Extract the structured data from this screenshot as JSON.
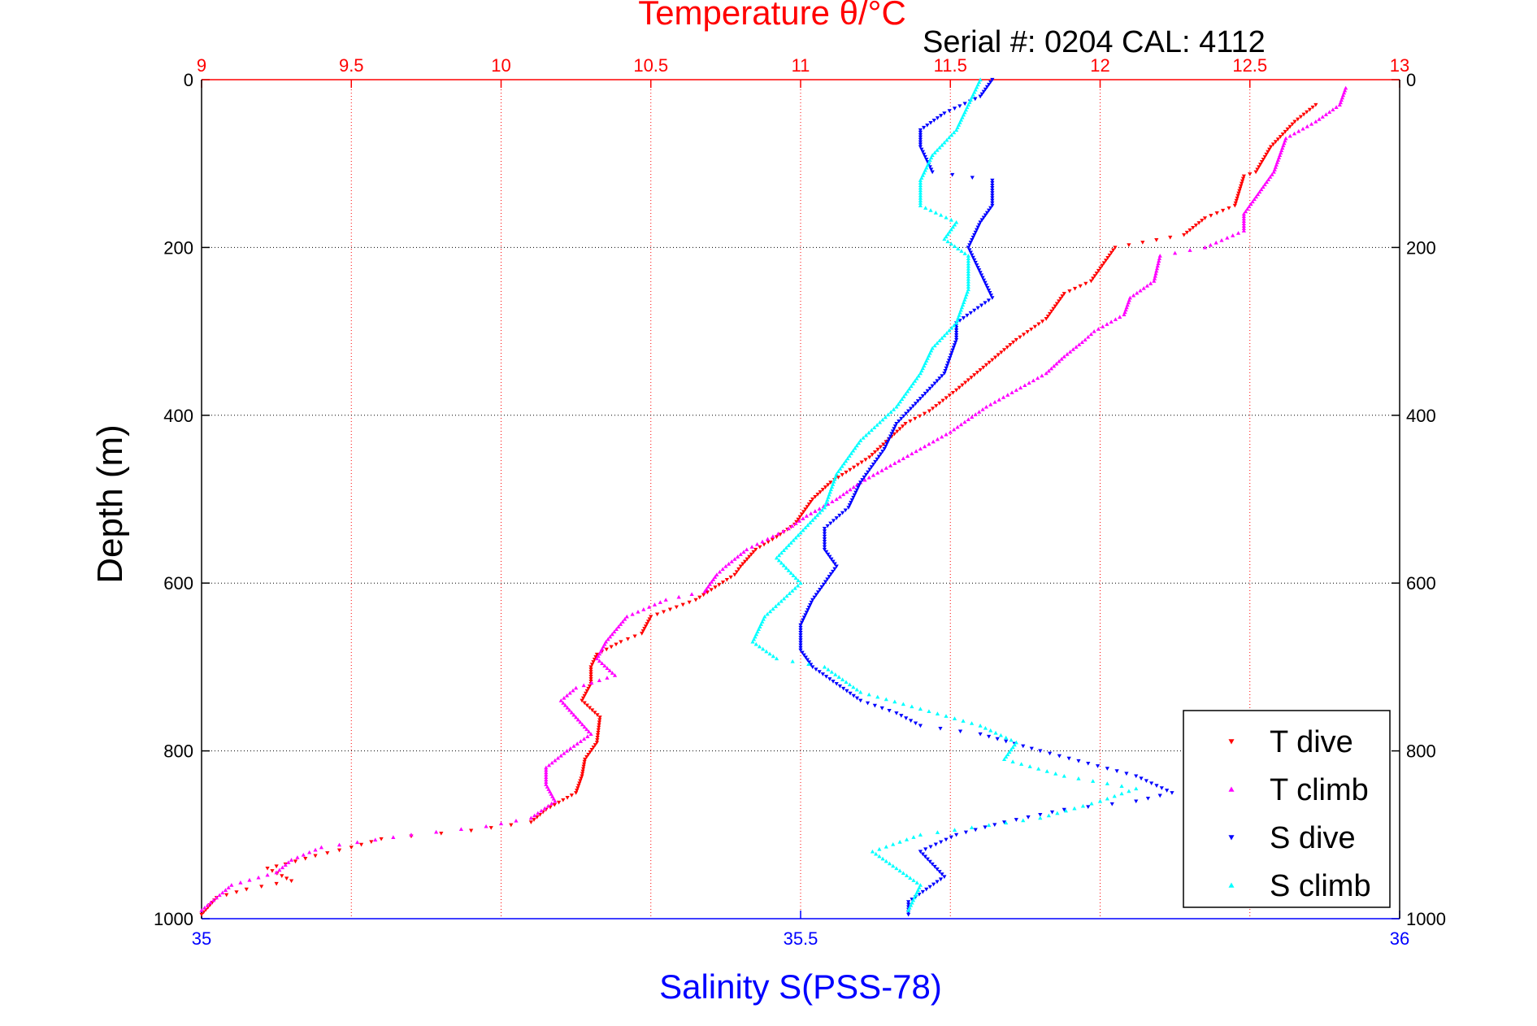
{
  "chart_data": {
    "type": "scatter",
    "title": "Temperature θ/°C",
    "subtitle": "Serial #: 0204  CAL: 4112",
    "xlabel_top": "Temperature θ/°C",
    "xlabel_bottom": "Salinity S(PSS-78)",
    "ylabel": "Depth (m)",
    "temp_axis": {
      "range": [
        9,
        13
      ],
      "ticks": [
        "9",
        "9.5",
        "10",
        "10.5",
        "11",
        "11.5",
        "12",
        "12.5",
        "13"
      ],
      "color": "#ff0000"
    },
    "sal_axis": {
      "range": [
        35,
        36
      ],
      "ticks": [
        "35",
        "35.5",
        "36"
      ],
      "color": "#0000ff"
    },
    "depth_axis": {
      "range": [
        0,
        1000
      ],
      "reversed": true,
      "ticks": [
        "0",
        "200",
        "400",
        "600",
        "800",
        "1000"
      ]
    },
    "grid": true,
    "legend_position": "bottom-right",
    "series": [
      {
        "name": "T dive",
        "axis": "temp",
        "color": "#ff0000",
        "marker": "triangle-down",
        "points": [
          [
            12.72,
            30
          ],
          [
            12.65,
            50
          ],
          [
            12.57,
            80
          ],
          [
            12.52,
            110
          ],
          [
            12.48,
            115
          ],
          [
            12.45,
            150
          ],
          [
            12.35,
            165
          ],
          [
            12.28,
            185
          ],
          [
            12.05,
            200
          ],
          [
            11.97,
            240
          ],
          [
            11.88,
            255
          ],
          [
            11.82,
            285
          ],
          [
            11.72,
            310
          ],
          [
            11.62,
            340
          ],
          [
            11.52,
            370
          ],
          [
            11.43,
            395
          ],
          [
            11.35,
            410
          ],
          [
            11.23,
            450
          ],
          [
            11.1,
            480
          ],
          [
            11.04,
            500
          ],
          [
            10.98,
            530
          ],
          [
            10.92,
            545
          ],
          [
            10.85,
            560
          ],
          [
            10.8,
            580
          ],
          [
            10.78,
            590
          ],
          [
            10.65,
            620
          ],
          [
            10.5,
            640
          ],
          [
            10.47,
            660
          ],
          [
            10.4,
            670
          ],
          [
            10.32,
            685
          ],
          [
            10.3,
            700
          ],
          [
            10.3,
            720
          ],
          [
            10.27,
            740
          ],
          [
            10.33,
            760
          ],
          [
            10.32,
            790
          ],
          [
            10.28,
            810
          ],
          [
            10.27,
            830
          ],
          [
            10.25,
            850
          ],
          [
            10.15,
            870
          ],
          [
            10.1,
            885
          ],
          [
            9.9,
            895
          ],
          [
            9.6,
            905
          ],
          [
            9.5,
            915
          ],
          [
            9.38,
            925
          ],
          [
            9.28,
            935
          ],
          [
            9.22,
            940
          ],
          [
            9.3,
            955
          ],
          [
            9.15,
            965
          ],
          [
            9.05,
            975
          ],
          [
            9.0,
            995
          ]
        ]
      },
      {
        "name": "T climb",
        "axis": "temp",
        "color": "#ff00ff",
        "marker": "triangle-up",
        "points": [
          [
            12.82,
            10
          ],
          [
            12.8,
            30
          ],
          [
            12.72,
            50
          ],
          [
            12.62,
            70
          ],
          [
            12.6,
            90
          ],
          [
            12.58,
            110
          ],
          [
            12.55,
            125
          ],
          [
            12.48,
            160
          ],
          [
            12.48,
            180
          ],
          [
            12.35,
            200
          ],
          [
            12.2,
            210
          ],
          [
            12.18,
            240
          ],
          [
            12.1,
            260
          ],
          [
            12.08,
            280
          ],
          [
            11.98,
            300
          ],
          [
            11.95,
            310
          ],
          [
            11.88,
            330
          ],
          [
            11.82,
            350
          ],
          [
            11.72,
            370
          ],
          [
            11.62,
            390
          ],
          [
            11.5,
            420
          ],
          [
            11.4,
            440
          ],
          [
            11.3,
            460
          ],
          [
            11.2,
            480
          ],
          [
            11.12,
            500
          ],
          [
            11.02,
            520
          ],
          [
            10.96,
            535
          ],
          [
            10.82,
            560
          ],
          [
            10.75,
            580
          ],
          [
            10.72,
            590
          ],
          [
            10.68,
            610
          ],
          [
            10.55,
            620
          ],
          [
            10.42,
            640
          ],
          [
            10.35,
            670
          ],
          [
            10.32,
            690
          ],
          [
            10.38,
            710
          ],
          [
            10.25,
            725
          ],
          [
            10.2,
            740
          ],
          [
            10.25,
            760
          ],
          [
            10.3,
            780
          ],
          [
            10.22,
            800
          ],
          [
            10.15,
            820
          ],
          [
            10.15,
            840
          ],
          [
            10.18,
            860
          ],
          [
            10.1,
            880
          ],
          [
            9.95,
            890
          ],
          [
            9.7,
            900
          ],
          [
            9.4,
            915
          ],
          [
            9.3,
            930
          ],
          [
            9.25,
            945
          ],
          [
            9.1,
            960
          ],
          [
            9.0,
            990
          ]
        ]
      },
      {
        "name": "S dive",
        "axis": "sal",
        "color": "#0000ff",
        "marker": "triangle-down",
        "points": [
          [
            35.66,
            0
          ],
          [
            35.65,
            20
          ],
          [
            35.62,
            40
          ],
          [
            35.6,
            60
          ],
          [
            35.6,
            80
          ],
          [
            35.61,
            110
          ],
          [
            35.66,
            120
          ],
          [
            35.66,
            150
          ],
          [
            35.65,
            170
          ],
          [
            35.64,
            200
          ],
          [
            35.65,
            230
          ],
          [
            35.66,
            260
          ],
          [
            35.63,
            290
          ],
          [
            35.63,
            310
          ],
          [
            35.62,
            350
          ],
          [
            35.6,
            380
          ],
          [
            35.58,
            410
          ],
          [
            35.57,
            440
          ],
          [
            35.55,
            480
          ],
          [
            35.54,
            510
          ],
          [
            35.52,
            535
          ],
          [
            35.52,
            560
          ],
          [
            35.53,
            580
          ],
          [
            35.51,
            620
          ],
          [
            35.5,
            650
          ],
          [
            35.5,
            680
          ],
          [
            35.51,
            700
          ],
          [
            35.53,
            720
          ],
          [
            35.55,
            740
          ],
          [
            35.58,
            755
          ],
          [
            35.6,
            770
          ],
          [
            35.65,
            780
          ],
          [
            35.7,
            800
          ],
          [
            35.78,
            830
          ],
          [
            35.81,
            850
          ],
          [
            35.78,
            860
          ],
          [
            35.72,
            870
          ],
          [
            35.67,
            885
          ],
          [
            35.63,
            900
          ],
          [
            35.6,
            920
          ],
          [
            35.62,
            950
          ],
          [
            35.59,
            980
          ],
          [
            35.59,
            995
          ]
        ]
      },
      {
        "name": "S climb",
        "axis": "sal",
        "color": "#00ffff",
        "marker": "triangle-up",
        "points": [
          [
            35.65,
            0
          ],
          [
            35.64,
            30
          ],
          [
            35.63,
            60
          ],
          [
            35.61,
            90
          ],
          [
            35.6,
            120
          ],
          [
            35.6,
            150
          ],
          [
            35.63,
            170
          ],
          [
            35.62,
            190
          ],
          [
            35.64,
            210
          ],
          [
            35.64,
            250
          ],
          [
            35.63,
            290
          ],
          [
            35.61,
            320
          ],
          [
            35.6,
            350
          ],
          [
            35.58,
            390
          ],
          [
            35.55,
            430
          ],
          [
            35.53,
            470
          ],
          [
            35.52,
            510
          ],
          [
            35.5,
            540
          ],
          [
            35.48,
            570
          ],
          [
            35.5,
            600
          ],
          [
            35.47,
            640
          ],
          [
            35.46,
            670
          ],
          [
            35.48,
            690
          ],
          [
            35.52,
            700
          ],
          [
            35.55,
            730
          ],
          [
            35.6,
            750
          ],
          [
            35.65,
            770
          ],
          [
            35.68,
            790
          ],
          [
            35.67,
            810
          ],
          [
            35.72,
            830
          ],
          [
            35.78,
            845
          ],
          [
            35.75,
            860
          ],
          [
            35.7,
            880
          ],
          [
            35.6,
            900
          ],
          [
            35.56,
            920
          ],
          [
            35.58,
            940
          ],
          [
            35.6,
            960
          ],
          [
            35.59,
            990
          ]
        ]
      }
    ]
  }
}
